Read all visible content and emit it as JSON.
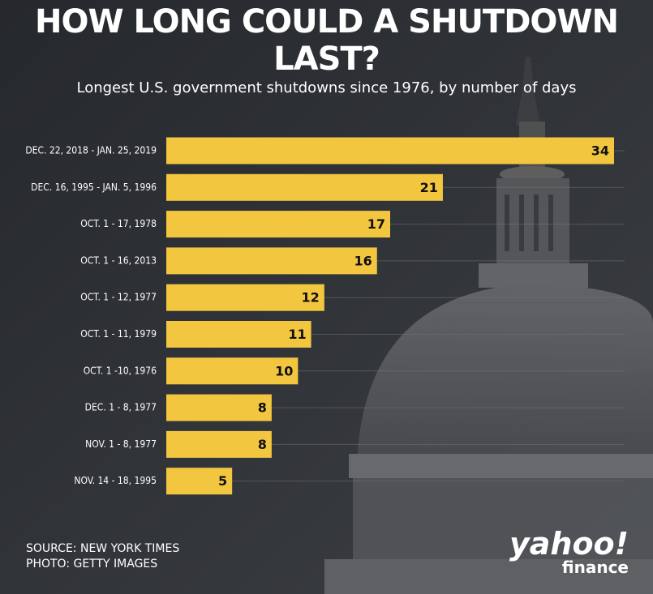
{
  "chart_data": {
    "type": "bar",
    "orientation": "horizontal",
    "title": "HOW LONG COULD A SHUTDOWN LAST?",
    "subtitle": "Longest U.S. government shutdowns since 1976, by number of days",
    "categories": [
      "DEC. 22, 2018 - JAN. 25, 2019",
      "DEC. 16, 1995 - JAN. 5, 1996",
      "OCT. 1 - 17, 1978",
      "OCT. 1 - 16, 2013",
      "OCT. 1 - 12, 1977",
      "OCT. 1 - 11, 1979",
      "OCT. 1 -10, 1976",
      "DEC. 1 - 8, 1977",
      "NOV. 1 - 8, 1977",
      "NOV. 14 - 18, 1995"
    ],
    "values": [
      34,
      21,
      17,
      16,
      12,
      11,
      10,
      8,
      8,
      5
    ],
    "color": "#f3c63f"
  },
  "source": "SOURCE: NEW YORK TIMES",
  "photo_credit": "PHOTO: GETTY IMAGES",
  "logo": {
    "word": "yahoo!",
    "sub": "finance"
  }
}
